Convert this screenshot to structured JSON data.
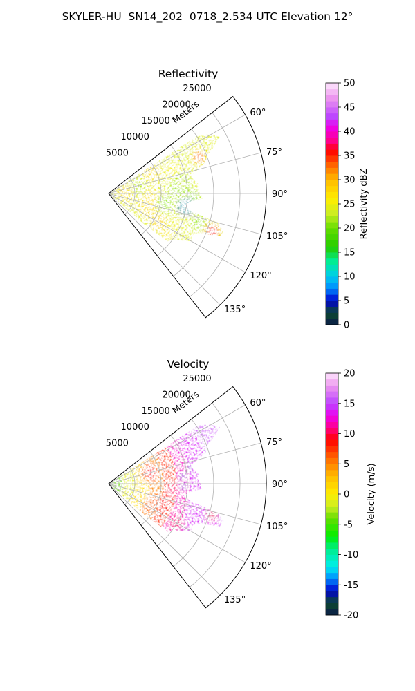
{
  "figure": {
    "title": "SKYLER-HU  SN14_202  0718_2.534 UTC Elevation 12°"
  },
  "chart_data": [
    {
      "type": "heatmap",
      "subtype": "polar-sector (radar PPI)",
      "title": "Reflectivity",
      "radius_label": "Meters",
      "radius_ticks": [
        5000,
        10000,
        15000,
        20000,
        25000
      ],
      "radius_max": 30000,
      "angle_ticks": [
        "60°",
        "75°",
        "90°",
        "105°",
        "120°",
        "135°"
      ],
      "angle_range_deg": [
        52,
        142
      ],
      "grid": true,
      "colorbar": {
        "label": "Reflectivity dBZ",
        "min": 0,
        "max": 50,
        "ticks": [
          0,
          5,
          10,
          15,
          20,
          25,
          30,
          35,
          40,
          45,
          50
        ],
        "stops": [
          {
            "v": 0,
            "c": "#0a1a4a"
          },
          {
            "v": 2.5,
            "c": "#0d4a2e"
          },
          {
            "v": 5,
            "c": "#0000cc"
          },
          {
            "v": 7.5,
            "c": "#0088ff"
          },
          {
            "v": 10,
            "c": "#00ccee"
          },
          {
            "v": 13,
            "c": "#00ee99"
          },
          {
            "v": 16,
            "c": "#22cc00"
          },
          {
            "v": 20,
            "c": "#66dd00"
          },
          {
            "v": 23,
            "c": "#ccee22"
          },
          {
            "v": 26,
            "c": "#ffee00"
          },
          {
            "v": 30,
            "c": "#ffbb00"
          },
          {
            "v": 33,
            "c": "#ff6600"
          },
          {
            "v": 36,
            "c": "#ff0000"
          },
          {
            "v": 38,
            "c": "#ff0088"
          },
          {
            "v": 41,
            "c": "#ee00ee"
          },
          {
            "v": 43,
            "c": "#bb44ff"
          },
          {
            "v": 47,
            "c": "#ee99ee"
          },
          {
            "v": 50,
            "c": "#ffe8ff"
          }
        ]
      },
      "echo_summary": {
        "dominant_range_dbz": [
          18,
          30
        ],
        "cells": [
          {
            "azimuth_deg": 68,
            "range_m": 18500,
            "peak_dbz": 37
          },
          {
            "azimuth_deg": 110,
            "range_m": 21000,
            "peak_dbz": 40
          },
          {
            "azimuth_deg": 82,
            "range_m": 14000,
            "peak_dbz": 28
          },
          {
            "azimuth_deg": 100,
            "range_m": 15000,
            "peak_dbz": 14
          }
        ]
      }
    },
    {
      "type": "heatmap",
      "subtype": "polar-sector (radar PPI)",
      "title": "Velocity",
      "radius_label": "Meters",
      "radius_ticks": [
        5000,
        10000,
        15000,
        20000,
        25000
      ],
      "radius_max": 30000,
      "angle_ticks": [
        "60°",
        "75°",
        "90°",
        "105°",
        "120°",
        "135°"
      ],
      "angle_range_deg": [
        52,
        142
      ],
      "grid": true,
      "colorbar": {
        "label": "Velocity (m/s)",
        "min": -20,
        "max": 20,
        "ticks": [
          -20,
          -15,
          -10,
          -5,
          0,
          5,
          10,
          15,
          20
        ],
        "stops": [
          {
            "v": -20,
            "c": "#0a1a4a"
          },
          {
            "v": -18,
            "c": "#0d4a2e"
          },
          {
            "v": -16,
            "c": "#0000cc"
          },
          {
            "v": -14,
            "c": "#0088ff"
          },
          {
            "v": -12,
            "c": "#00eeee"
          },
          {
            "v": -9,
            "c": "#00ee88"
          },
          {
            "v": -7,
            "c": "#00ee00"
          },
          {
            "v": -4,
            "c": "#66dd00"
          },
          {
            "v": -2,
            "c": "#ccee22"
          },
          {
            "v": 0,
            "c": "#ffee00"
          },
          {
            "v": 3,
            "c": "#ffbb00"
          },
          {
            "v": 6,
            "c": "#ff6600"
          },
          {
            "v": 9,
            "c": "#ff0000"
          },
          {
            "v": 11,
            "c": "#ff0088"
          },
          {
            "v": 13,
            "c": "#ee00ee"
          },
          {
            "v": 15,
            "c": "#bb44ff"
          },
          {
            "v": 18,
            "c": "#ee99ee"
          },
          {
            "v": 20,
            "c": "#ffe8ff"
          }
        ]
      },
      "velocity_summary": {
        "near_range_m_per_s": [
          -4,
          2
        ],
        "mid_range_m_per_s": [
          5,
          10
        ],
        "far_range_m_per_s": [
          12,
          17
        ],
        "folded_region_azimuth_deg": [
          78,
          92
        ]
      }
    }
  ]
}
